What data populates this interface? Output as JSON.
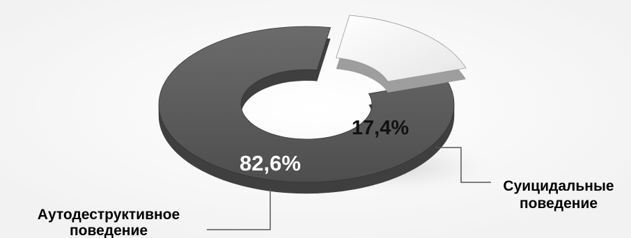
{
  "chart_data": {
    "type": "pie",
    "style": "3d-donut-exploded",
    "categories": [
      "Аутодеструктивное поведение",
      "Суицидальные поведение"
    ],
    "values": [
      82.6,
      17.4
    ],
    "data_labels": [
      "82,6%",
      "17,4%"
    ],
    "category_label_lines": [
      [
        "Аутодеструктивное",
        "поведение"
      ],
      [
        "Суицидальные",
        "поведение"
      ]
    ],
    "colors": [
      "#5a5a5a",
      "#f0f0f0"
    ],
    "legend": "none"
  }
}
